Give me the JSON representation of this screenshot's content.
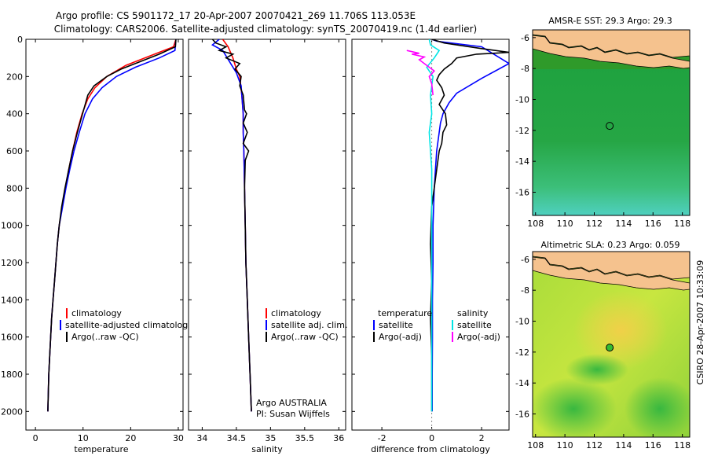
{
  "title": {
    "line1": "Argo profile: CS 5901172_17 20-Apr-2007 20070421_269 11.706S 113.053E",
    "line2": "Climatology: CARS2006. Satellite-adjusted climatology: synTS_20070419.nc (1.4d earlier)"
  },
  "colors": {
    "climatology": "#ff0000",
    "satellite": "#0000ff",
    "argo": "#000000",
    "sal_satellite": "#00e5e5",
    "sal_argo": "#ff00ff",
    "land": "#f5c28e"
  },
  "side_label": "CSIRO 28-Apr-2007 10:33:09",
  "chart_data": [
    {
      "type": "line",
      "xlabel": "temperature",
      "ylabel": "",
      "xlim": [
        -2,
        31
      ],
      "ylim": [
        2100,
        0
      ],
      "xticks": [
        "0",
        "10",
        "20",
        "30"
      ],
      "xtick_values": [
        0,
        10,
        20,
        30
      ],
      "yticks": [
        "0",
        "200",
        "400",
        "600",
        "800",
        "1000",
        "1200",
        "1400",
        "1600",
        "1800",
        "2000"
      ],
      "ytick_values": [
        0,
        200,
        400,
        600,
        800,
        1000,
        1200,
        1400,
        1600,
        1800,
        2000
      ],
      "legend": [
        "climatology",
        "satellite-adjusted climatology",
        "Argo(..raw -QC)"
      ],
      "series": [
        {
          "name": "climatology",
          "color": "#ff0000",
          "points": [
            [
              29.5,
              0
            ],
            [
              29,
              40
            ],
            [
              24,
              90
            ],
            [
              19,
              140
            ],
            [
              15,
              200
            ],
            [
              12.5,
              260
            ],
            [
              11,
              320
            ],
            [
              9.8,
              400
            ],
            [
              8.7,
              500
            ],
            [
              7.8,
              600
            ],
            [
              7,
              700
            ],
            [
              6.3,
              800
            ],
            [
              5.6,
              900
            ],
            [
              5,
              1000
            ],
            [
              4.6,
              1100
            ],
            [
              4.3,
              1200
            ],
            [
              4,
              1300
            ],
            [
              3.7,
              1400
            ],
            [
              3.4,
              1500
            ],
            [
              3.2,
              1600
            ],
            [
              3,
              1700
            ],
            [
              2.8,
              1800
            ],
            [
              2.7,
              1900
            ],
            [
              2.6,
              2000
            ]
          ]
        },
        {
          "name": "satellite",
          "color": "#0000ff",
          "points": [
            [
              29.5,
              0
            ],
            [
              29.3,
              60
            ],
            [
              26,
              100
            ],
            [
              21,
              150
            ],
            [
              17,
              200
            ],
            [
              14,
              260
            ],
            [
              12,
              320
            ],
            [
              10.4,
              400
            ],
            [
              9.2,
              500
            ],
            [
              8.1,
              600
            ],
            [
              7.2,
              700
            ],
            [
              6.4,
              800
            ],
            [
              5.7,
              900
            ],
            [
              5,
              1000
            ],
            [
              4.6,
              1100
            ],
            [
              4.3,
              1200
            ],
            [
              4,
              1300
            ],
            [
              3.7,
              1400
            ],
            [
              3.4,
              1500
            ],
            [
              3.2,
              1600
            ],
            [
              3,
              1700
            ],
            [
              2.8,
              1800
            ],
            [
              2.7,
              1900
            ],
            [
              2.6,
              2000
            ]
          ]
        },
        {
          "name": "argo",
          "color": "#000000",
          "points": [
            [
              29.5,
              0
            ],
            [
              29.4,
              40
            ],
            [
              26,
              80
            ],
            [
              22,
              120
            ],
            [
              18,
              160
            ],
            [
              15,
              200
            ],
            [
              12.3,
              250
            ],
            [
              11,
              300
            ],
            [
              9.9,
              400
            ],
            [
              8.8,
              500
            ],
            [
              7.8,
              600
            ],
            [
              7,
              700
            ],
            [
              6.2,
              800
            ],
            [
              5.5,
              900
            ],
            [
              5,
              1000
            ],
            [
              4.6,
              1100
            ],
            [
              4.3,
              1200
            ],
            [
              4,
              1300
            ],
            [
              3.7,
              1400
            ],
            [
              3.4,
              1500
            ],
            [
              3.2,
              1600
            ],
            [
              3,
              1700
            ],
            [
              2.8,
              1800
            ],
            [
              2.7,
              1900
            ],
            [
              2.6,
              2000
            ]
          ]
        }
      ]
    },
    {
      "type": "line",
      "xlabel": "salinity",
      "xlim": [
        33.8,
        36.1
      ],
      "ylim": [
        2100,
        0
      ],
      "xticks": [
        "34",
        "34.5",
        "35",
        "35.5",
        "36"
      ],
      "xtick_values": [
        34,
        34.5,
        35,
        35.5,
        36
      ],
      "legend": [
        "climatology",
        "satellite adj. clim.",
        "Argo(..raw -QC)"
      ],
      "annotation": [
        "Argo AUSTRALIA",
        "PI: Susan Wijffels"
      ],
      "series": [
        {
          "name": "climatology",
          "color": "#ff0000",
          "points": [
            [
              34.3,
              0
            ],
            [
              34.38,
              40
            ],
            [
              34.45,
              100
            ],
            [
              34.5,
              160
            ],
            [
              34.55,
              200
            ],
            [
              34.58,
              300
            ],
            [
              34.6,
              400
            ],
            [
              34.6,
              500
            ],
            [
              34.61,
              600
            ],
            [
              34.62,
              800
            ],
            [
              34.63,
              1000
            ],
            [
              34.64,
              1200
            ],
            [
              34.66,
              1400
            ],
            [
              34.68,
              1600
            ],
            [
              34.7,
              1800
            ],
            [
              34.72,
              2000
            ]
          ]
        },
        {
          "name": "satellite",
          "color": "#0000ff",
          "points": [
            [
              34.25,
              0
            ],
            [
              34.15,
              30
            ],
            [
              34.3,
              60
            ],
            [
              34.4,
              120
            ],
            [
              34.5,
              180
            ],
            [
              34.57,
              250
            ],
            [
              34.58,
              300
            ],
            [
              34.6,
              400
            ],
            [
              34.6,
              500
            ],
            [
              34.61,
              600
            ],
            [
              34.62,
              800
            ],
            [
              34.63,
              1000
            ],
            [
              34.64,
              1200
            ],
            [
              34.66,
              1400
            ],
            [
              34.68,
              1600
            ],
            [
              34.7,
              1800
            ],
            [
              34.72,
              2000
            ]
          ]
        },
        {
          "name": "argo",
          "color": "#000000",
          "points": [
            [
              34.15,
              0
            ],
            [
              34.2,
              20
            ],
            [
              34.35,
              40
            ],
            [
              34.25,
              60
            ],
            [
              34.45,
              80
            ],
            [
              34.35,
              100
            ],
            [
              34.55,
              130
            ],
            [
              34.48,
              160
            ],
            [
              34.57,
              200
            ],
            [
              34.55,
              250
            ],
            [
              34.6,
              300
            ],
            [
              34.62,
              380
            ],
            [
              34.65,
              400
            ],
            [
              34.6,
              450
            ],
            [
              34.66,
              500
            ],
            [
              34.6,
              560
            ],
            [
              34.68,
              600
            ],
            [
              34.63,
              650
            ],
            [
              34.62,
              800
            ],
            [
              34.63,
              1000
            ],
            [
              34.64,
              1200
            ],
            [
              34.66,
              1400
            ],
            [
              34.68,
              1600
            ],
            [
              34.7,
              1800
            ],
            [
              34.72,
              2000
            ]
          ]
        }
      ]
    },
    {
      "type": "line",
      "xlabel": "difference from climatology",
      "xlim": [
        -3.2,
        3.1
      ],
      "ylim": [
        2100,
        0
      ],
      "xticks": [
        "-2",
        "0",
        "2"
      ],
      "xtick_values": [
        -2,
        0,
        2
      ],
      "legend_left_title": "temperature",
      "legend_left": [
        "satellite",
        "Argo(-adj)"
      ],
      "legend_right_title": "salinity",
      "legend_right": [
        "satellite",
        "Argo(-adj)"
      ],
      "series": [
        {
          "name": "temperature satellite",
          "color": "#0000ff",
          "points": [
            [
              0,
              0
            ],
            [
              0.2,
              10
            ],
            [
              2,
              40
            ],
            [
              3.1,
              130
            ],
            [
              2,
              210
            ],
            [
              1,
              290
            ],
            [
              0.7,
              340
            ],
            [
              0.45,
              400
            ],
            [
              0.35,
              450
            ],
            [
              0.3,
              500
            ],
            [
              0.2,
              600
            ],
            [
              0.15,
              700
            ],
            [
              0.1,
              800
            ],
            [
              0.05,
              1000
            ],
            [
              0.05,
              1200
            ],
            [
              0.03,
              1400
            ],
            [
              0.03,
              1600
            ],
            [
              0.02,
              1800
            ],
            [
              0.02,
              2000
            ]
          ]
        },
        {
          "name": "temperature Argo",
          "color": "#000000",
          "points": [
            [
              0,
              0
            ],
            [
              0.5,
              20
            ],
            [
              2,
              50
            ],
            [
              3.1,
              70
            ],
            [
              1.8,
              80
            ],
            [
              1,
              100
            ],
            [
              0.8,
              130
            ],
            [
              0.5,
              160
            ],
            [
              0.3,
              190
            ],
            [
              0.2,
              220
            ],
            [
              0.4,
              260
            ],
            [
              0.5,
              300
            ],
            [
              0.3,
              350
            ],
            [
              0.55,
              400
            ],
            [
              0.6,
              460
            ],
            [
              0.45,
              500
            ],
            [
              0.4,
              560
            ],
            [
              0.3,
              600
            ],
            [
              0.2,
              700
            ],
            [
              0,
              900
            ],
            [
              -0.05,
              1100
            ],
            [
              0,
              1300
            ],
            [
              -0.05,
              1500
            ],
            [
              0,
              1700
            ],
            [
              0,
              2000
            ]
          ]
        },
        {
          "name": "salinity satellite",
          "color": "#00e5e5",
          "points": [
            [
              -0.1,
              0
            ],
            [
              -0.05,
              30
            ],
            [
              0.3,
              60
            ],
            [
              0.1,
              100
            ],
            [
              -0.2,
              150
            ],
            [
              0.05,
              200
            ],
            [
              -0.05,
              300
            ],
            [
              0,
              400
            ],
            [
              -0.1,
              500
            ],
            [
              0,
              700
            ],
            [
              0,
              1000
            ],
            [
              0,
              1300
            ],
            [
              0,
              1600
            ],
            [
              0,
              2000
            ]
          ]
        },
        {
          "name": "salinity Argo",
          "color": "#ff00ff",
          "points": [
            [
              -1,
              60
            ],
            [
              -0.5,
              75
            ],
            [
              -0.8,
              80
            ],
            [
              -0.3,
              95
            ],
            [
              -0.5,
              110
            ],
            [
              -0.2,
              140
            ],
            [
              0.1,
              170
            ],
            [
              -0.1,
              200
            ],
            [
              0,
              240
            ],
            [
              0.05,
              300
            ]
          ]
        }
      ]
    },
    {
      "type": "heatmap",
      "title": "AMSR-E SST: 29.3 Argo: 29.3",
      "xlim": [
        107.8,
        118.5
      ],
      "ylim": [
        -17.5,
        -5.5
      ],
      "xticks": [
        "108",
        "110",
        "112",
        "114",
        "116",
        "118"
      ],
      "xtick_values": [
        108,
        110,
        112,
        114,
        116,
        118
      ],
      "yticks": [
        "-6",
        "-8",
        "-10",
        "-12",
        "-14",
        "-16"
      ],
      "ytick_values": [
        -6,
        -8,
        -10,
        -12,
        -14,
        -16
      ],
      "marker": {
        "lon": 113.05,
        "lat": -11.71,
        "fill": "none"
      }
    },
    {
      "type": "heatmap",
      "title": "Altimetric SLA: 0.23 Argo: 0.059",
      "xlim": [
        107.8,
        118.5
      ],
      "ylim": [
        -17.5,
        -5.5
      ],
      "xticks": [
        "108",
        "110",
        "112",
        "114",
        "116",
        "118"
      ],
      "xtick_values": [
        108,
        110,
        112,
        114,
        116,
        118
      ],
      "yticks": [
        "-6",
        "-8",
        "-10",
        "-12",
        "-14",
        "-16"
      ],
      "ytick_values": [
        -6,
        -8,
        -10,
        -12,
        -14,
        -16
      ],
      "marker": {
        "lon": 113.05,
        "lat": -11.71,
        "fill": "#33bb33"
      }
    }
  ]
}
